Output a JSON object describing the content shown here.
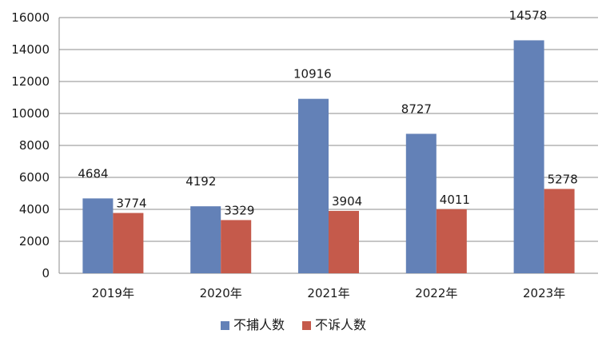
{
  "chart_data": {
    "type": "bar",
    "categories": [
      "2019年",
      "2020年",
      "2021年",
      "2022年",
      "2023年"
    ],
    "series": [
      {
        "name": "不捕人数",
        "values": [
          4684,
          4192,
          10916,
          8727,
          14578
        ],
        "color": "#6381b7"
      },
      {
        "name": "不诉人数",
        "values": [
          3774,
          3329,
          3904,
          4011,
          5278
        ],
        "color": "#c55a4b"
      }
    ],
    "title": "",
    "xlabel": "",
    "ylabel": "",
    "ylim": [
      0,
      16000
    ],
    "yticks": [
      0,
      2000,
      4000,
      6000,
      8000,
      10000,
      12000,
      14000,
      16000
    ],
    "grid": true,
    "legend": "bottom"
  }
}
